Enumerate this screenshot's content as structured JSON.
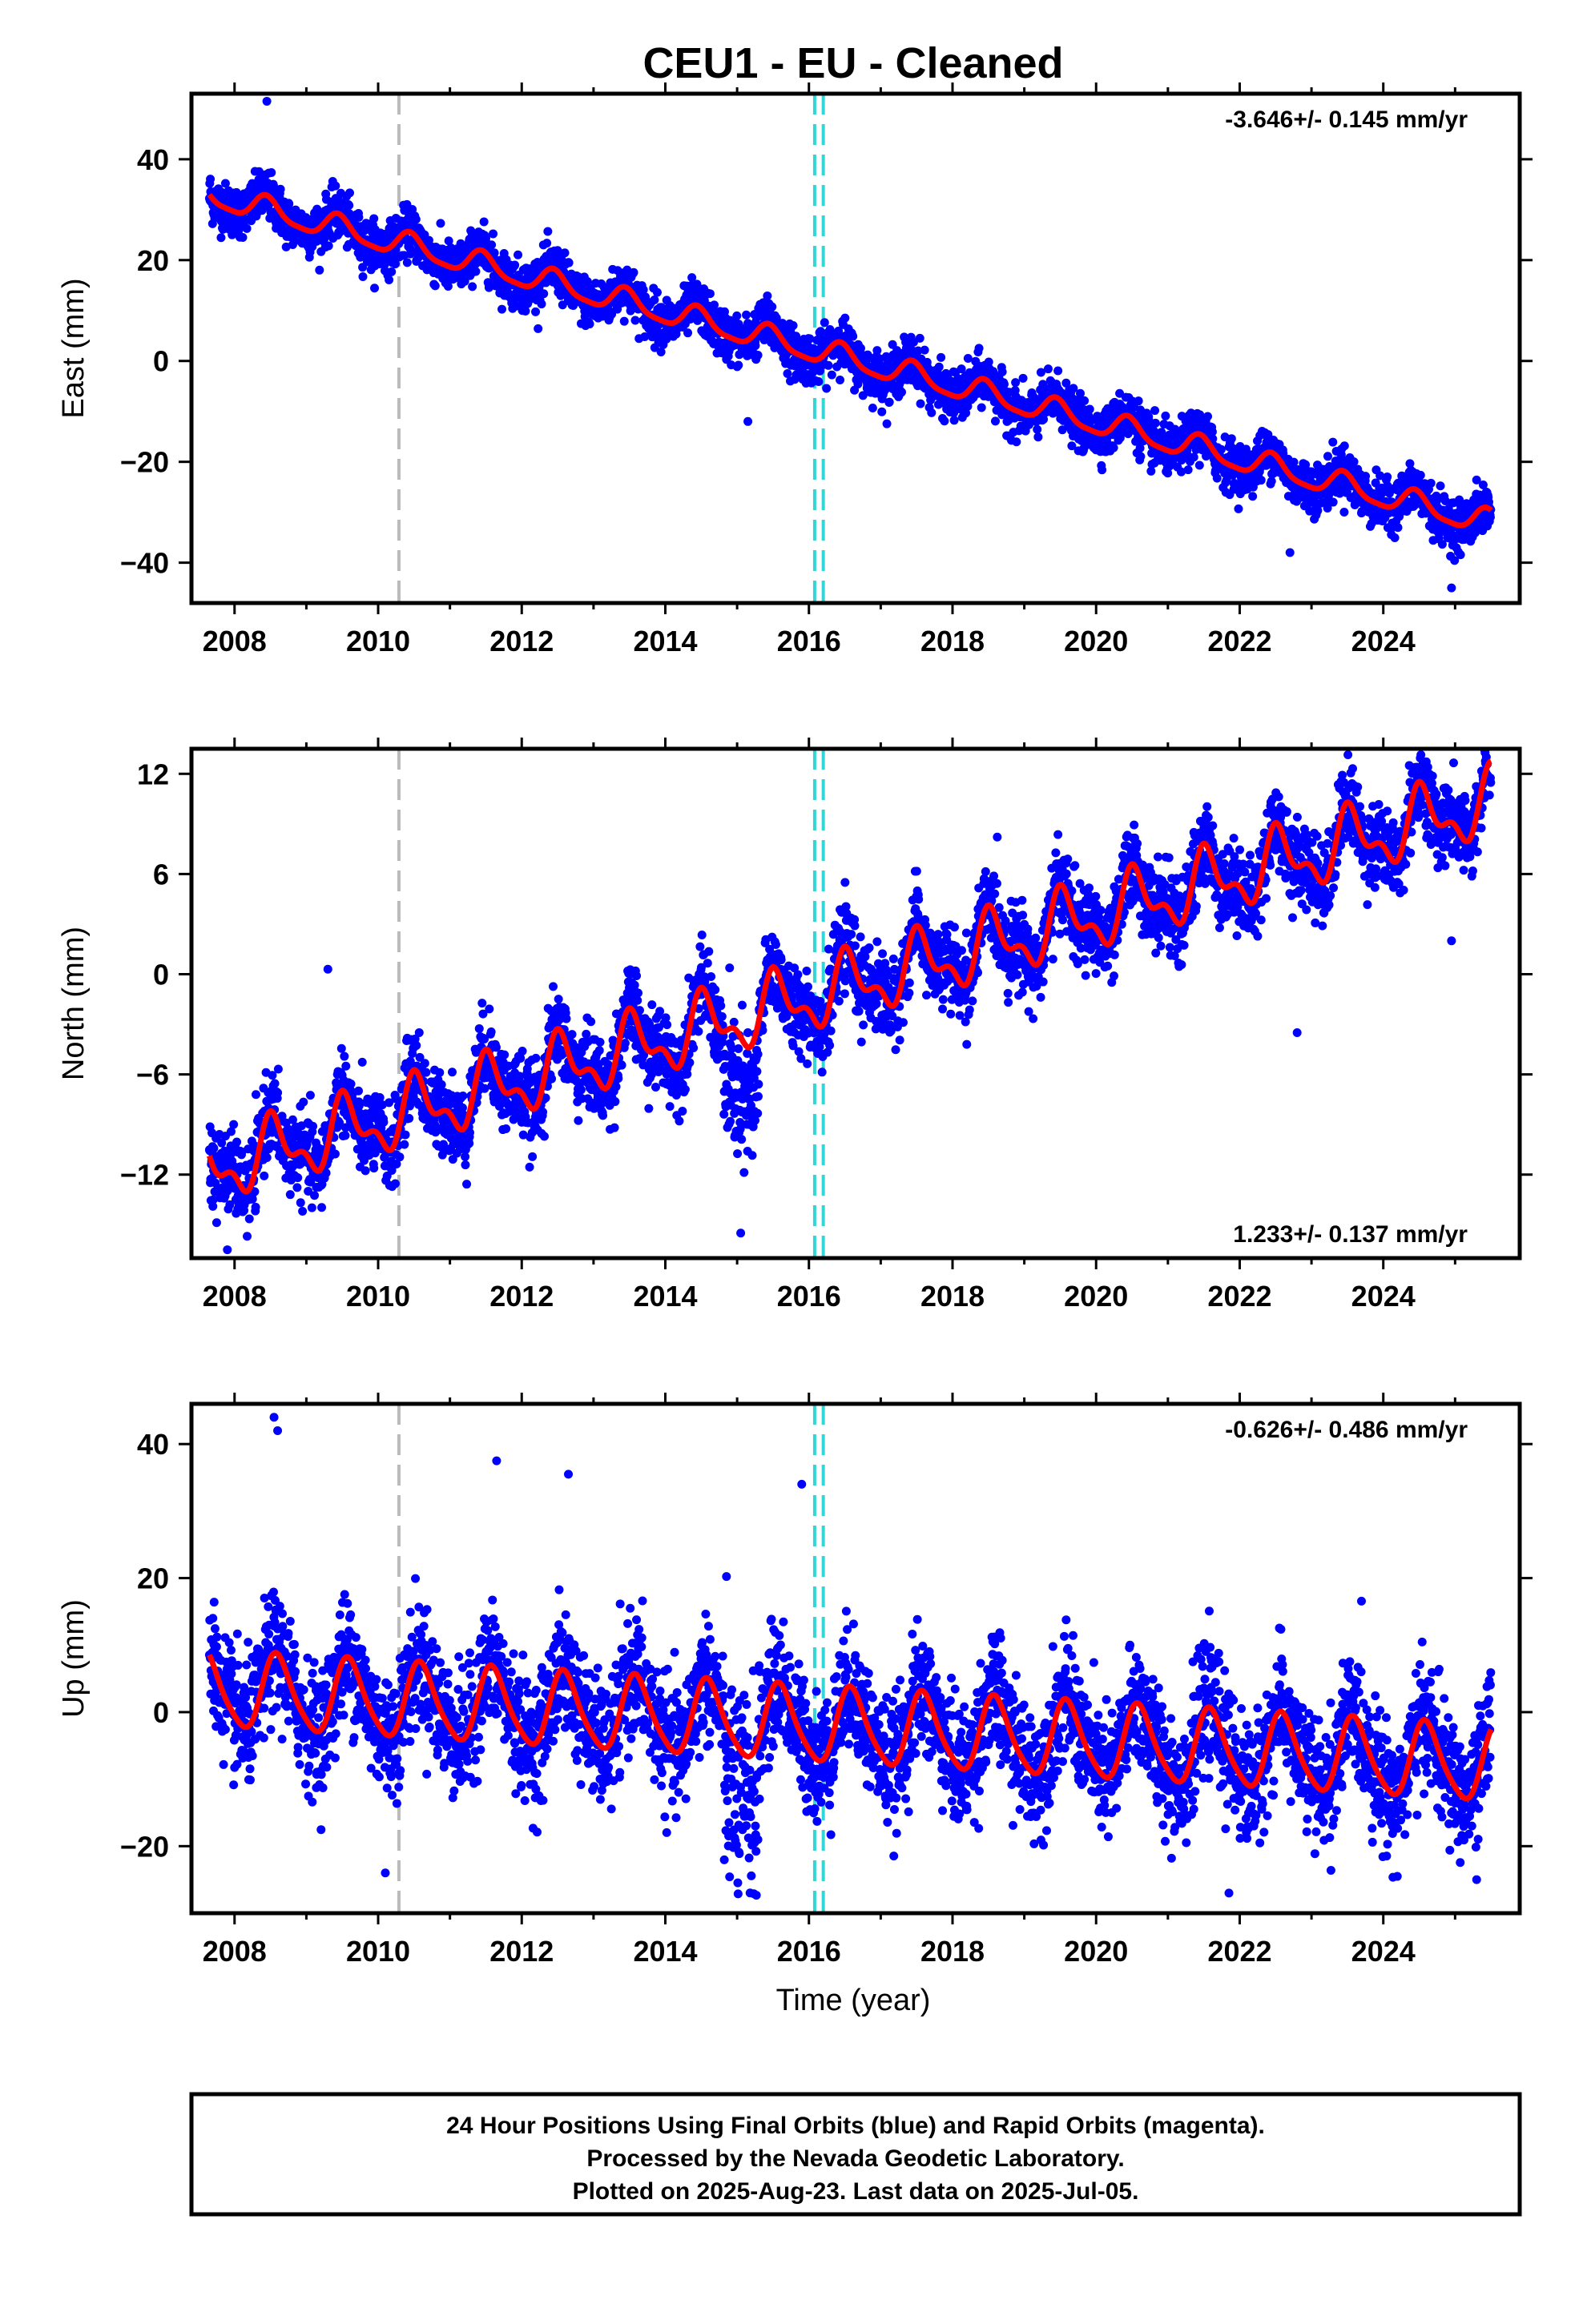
{
  "figure": {
    "title": "CEU1  - EU - Cleaned",
    "xlabel": "Time (year)",
    "footer": [
      "24 Hour Positions Using Final Orbits (blue) and Rapid Orbits (magenta).",
      "Processed by the Nevada Geodetic Laboratory.",
      "Plotted on 2025-Aug-23. Last data on 2025-Jul-05."
    ]
  },
  "colors": {
    "data_points": "#0000ff",
    "model_fit": "#ff0000",
    "event_gray": "#bbbbbb",
    "event_cyan": "#33d6d6",
    "frame": "#000000"
  },
  "chart_data": [
    {
      "type": "scatter",
      "component": "east",
      "ylabel": "East (mm)",
      "rate_label": "-3.646+/- 0.145 mm/yr",
      "rate_position": "top-right",
      "xlim": [
        2007.4,
        2025.9
      ],
      "ylim": [
        -48,
        53
      ],
      "xticks": [
        2008,
        2010,
        2012,
        2014,
        2016,
        2018,
        2020,
        2022,
        2024
      ],
      "xtick_labels": [
        "2008",
        "2010",
        "2012",
        "2014",
        "2016",
        "2018",
        "2020",
        "2022",
        "2024"
      ],
      "yticks": [
        -40,
        -20,
        0,
        20,
        40
      ],
      "ytick_labels": [
        "−40",
        "−20",
        "0",
        "20",
        "40"
      ],
      "events": [
        {
          "x": 2010.29,
          "kind": "gray"
        },
        {
          "x": 2016.08,
          "kind": "cyan"
        },
        {
          "x": 2016.2,
          "kind": "cyan"
        }
      ],
      "fit": {
        "x0": 2016.1,
        "y0": 2.0,
        "slope": -3.646,
        "amp1": 2.4,
        "phase1": 2007.2,
        "amp2": 0.6,
        "phase2": 2007.3
      },
      "noise_sigma": 2.4,
      "x_start": 2007.65,
      "x_end": 2025.5,
      "outliers": [
        [
          2008.45,
          51.5
        ],
        [
          2015.15,
          -12.0
        ],
        [
          2024.95,
          -45.0
        ],
        [
          2022.7,
          -38.0
        ]
      ]
    },
    {
      "type": "scatter",
      "component": "north",
      "ylabel": "North (mm)",
      "rate_label": "1.233+/- 0.137 mm/yr",
      "rate_position": "bottom-right",
      "xlim": [
        2007.4,
        2025.9
      ],
      "ylim": [
        -17,
        13.5
      ],
      "xticks": [
        2008,
        2010,
        2012,
        2014,
        2016,
        2018,
        2020,
        2022,
        2024
      ],
      "xtick_labels": [
        "2008",
        "2010",
        "2012",
        "2014",
        "2016",
        "2018",
        "2020",
        "2022",
        "2024"
      ],
      "yticks": [
        -12,
        -6,
        0,
        6,
        12
      ],
      "ytick_labels": [
        "−12",
        "−6",
        "0",
        "6",
        "12"
      ],
      "events": [
        {
          "x": 2010.29,
          "kind": "gray"
        },
        {
          "x": 2016.08,
          "kind": "cyan"
        },
        {
          "x": 2016.2,
          "kind": "cyan"
        }
      ],
      "fit": {
        "x0": 2016.1,
        "y0": -1.3,
        "slope": 1.233,
        "amp1": 1.7,
        "phase1": 2007.3,
        "amp2": 0.9,
        "phase2": 2007.35
      },
      "noise_sigma": 1.2,
      "x_start": 2007.65,
      "x_end": 2025.5,
      "outliers": [
        [
          2007.9,
          -16.5
        ],
        [
          2015.05,
          -15.5
        ],
        [
          2022.8,
          -3.5
        ],
        [
          2024.95,
          2.0
        ],
        [
          2009.3,
          0.3
        ]
      ]
    },
    {
      "type": "scatter",
      "component": "up",
      "ylabel": "Up (mm)",
      "rate_label": "-0.626+/- 0.486 mm/yr",
      "rate_position": "top-right",
      "xlim": [
        2007.4,
        2025.9
      ],
      "ylim": [
        -30,
        46
      ],
      "xticks": [
        2008,
        2010,
        2012,
        2014,
        2016,
        2018,
        2020,
        2022,
        2024
      ],
      "xtick_labels": [
        "2008",
        "2010",
        "2012",
        "2014",
        "2016",
        "2018",
        "2020",
        "2022",
        "2024"
      ],
      "yticks": [
        -20,
        0,
        20,
        40
      ],
      "ytick_labels": [
        "−20",
        "0",
        "20",
        "40"
      ],
      "events": [
        {
          "x": 2010.29,
          "kind": "gray"
        },
        {
          "x": 2016.08,
          "kind": "cyan"
        },
        {
          "x": 2016.2,
          "kind": "cyan"
        }
      ],
      "fit": {
        "x0": 2016.1,
        "y0": -2.0,
        "slope": -0.626,
        "amp1": 5.5,
        "phase1": 2007.35,
        "amp2": 0.9,
        "phase2": 2007.4
      },
      "noise_sigma": 4.5,
      "x_start": 2007.65,
      "x_end": 2025.5,
      "outliers": [
        [
          2008.55,
          44.0
        ],
        [
          2008.6,
          42.0
        ],
        [
          2011.65,
          37.5
        ],
        [
          2012.65,
          35.5
        ],
        [
          2015.9,
          34.0
        ],
        [
          2021.85,
          -27.0
        ],
        [
          2010.1,
          -24.0
        ],
        [
          2025.3,
          -25.0
        ]
      ]
    }
  ]
}
